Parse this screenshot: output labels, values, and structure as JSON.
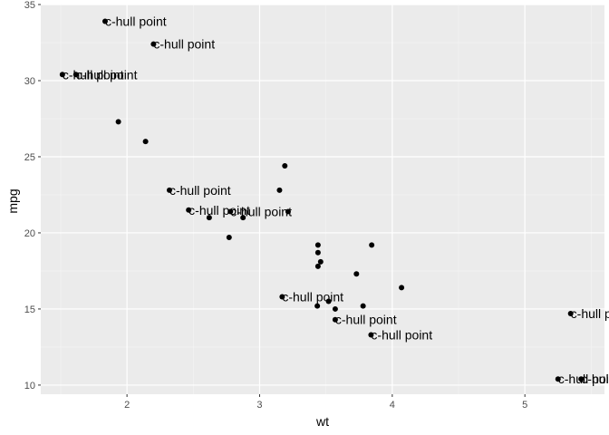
{
  "chart_data": {
    "type": "scatter",
    "xlabel": "wt",
    "ylabel": "mpg",
    "xlim": [
      1.35,
      5.6
    ],
    "ylim": [
      9.4,
      35.0
    ],
    "xticks": [
      2,
      3,
      4,
      5
    ],
    "yticks": [
      10,
      15,
      20,
      25,
      30,
      35
    ],
    "x_minor": [
      1.5,
      2.5,
      3.5,
      4.5,
      5.5
    ],
    "y_minor": [
      12.5,
      17.5,
      22.5,
      27.5,
      32.5
    ],
    "grid": true,
    "panel_color": "#ebebeb",
    "point_color": "#000000",
    "points": [
      {
        "x": 2.62,
        "y": 21.0
      },
      {
        "x": 2.875,
        "y": 21.0
      },
      {
        "x": 2.32,
        "y": 22.8,
        "label": "c-hull point"
      },
      {
        "x": 3.215,
        "y": 21.4
      },
      {
        "x": 3.44,
        "y": 18.7
      },
      {
        "x": 3.46,
        "y": 18.1
      },
      {
        "x": 3.57,
        "y": 14.3,
        "label": "c-hull point"
      },
      {
        "x": 3.19,
        "y": 24.4
      },
      {
        "x": 3.15,
        "y": 22.8
      },
      {
        "x": 3.44,
        "y": 19.2
      },
      {
        "x": 3.44,
        "y": 17.8
      },
      {
        "x": 4.07,
        "y": 16.4
      },
      {
        "x": 3.73,
        "y": 17.3
      },
      {
        "x": 3.78,
        "y": 15.2
      },
      {
        "x": 5.25,
        "y": 10.4,
        "label": "c-hull point"
      },
      {
        "x": 5.424,
        "y": 10.4,
        "label": "c-hull point"
      },
      {
        "x": 5.345,
        "y": 14.7,
        "label": "c-hull point"
      },
      {
        "x": 2.2,
        "y": 32.4,
        "label": "c-hull point"
      },
      {
        "x": 1.615,
        "y": 30.4,
        "label": "c-hull point"
      },
      {
        "x": 1.835,
        "y": 33.9,
        "label": "c-hull point"
      },
      {
        "x": 2.465,
        "y": 21.5,
        "label": "c-hull point"
      },
      {
        "x": 3.52,
        "y": 15.5
      },
      {
        "x": 3.435,
        "y": 15.2
      },
      {
        "x": 3.84,
        "y": 13.3,
        "label": "c-hull point"
      },
      {
        "x": 3.845,
        "y": 19.2
      },
      {
        "x": 1.935,
        "y": 27.3
      },
      {
        "x": 2.14,
        "y": 26.0
      },
      {
        "x": 1.513,
        "y": 30.4,
        "label": "c-hull point"
      },
      {
        "x": 3.17,
        "y": 15.8,
        "label": "c-hull point"
      },
      {
        "x": 2.77,
        "y": 19.7
      },
      {
        "x": 3.57,
        "y": 15.0
      },
      {
        "x": 2.78,
        "y": 21.4,
        "label": "c-hull point"
      }
    ]
  }
}
